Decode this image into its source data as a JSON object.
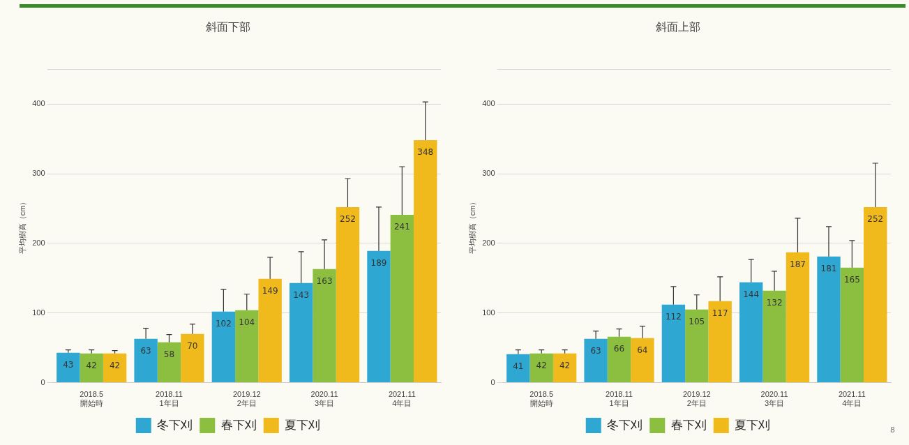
{
  "chart_data": [
    {
      "type": "bar",
      "title": "斜面下部",
      "ylabel": "平均樹高（cm）",
      "categories": [
        "2018.5\n開始時",
        "2018.11\n1年目",
        "2019.12\n2年目",
        "2020.11\n3年目",
        "2021.11\n4年目"
      ],
      "series": [
        {
          "name": "冬下刈",
          "color": "#2ea8d3",
          "values": [
            43,
            63,
            102,
            143,
            189
          ],
          "errors": [
            [
              43,
              47
            ],
            [
              63,
              78
            ],
            [
              102,
              134
            ],
            [
              143,
              188
            ],
            [
              189,
              252
            ]
          ]
        },
        {
          "name": "春下刈",
          "color": "#8cbf3f",
          "values": [
            42,
            58,
            104,
            163,
            241
          ],
          "errors": [
            [
              42,
              47
            ],
            [
              58,
              69
            ],
            [
              104,
              127
            ],
            [
              163,
              205
            ],
            [
              241,
              310
            ]
          ]
        },
        {
          "name": "夏下刈",
          "color": "#f0b91c",
          "values": [
            42,
            70,
            149,
            252,
            348
          ],
          "errors": [
            [
              42,
              46
            ],
            [
              70,
              84
            ],
            [
              149,
              180
            ],
            [
              252,
              293
            ],
            [
              348,
              403
            ]
          ]
        }
      ],
      "ylim": [
        0,
        450
      ],
      "yticks": [
        0,
        100,
        200,
        300,
        400,
        {
          "value": 450,
          "label": null
        }
      ],
      "grid": "y",
      "data_labels": true,
      "legend": "bottom"
    },
    {
      "type": "bar",
      "title": "斜面上部",
      "ylabel": "平均樹高（cm）",
      "categories": [
        "2018.5\n開始時",
        "2018.11\n1年目",
        "2019.12\n2年目",
        "2020.11\n3年目",
        "2021.11\n4年目"
      ],
      "series": [
        {
          "name": "冬下刈",
          "color": "#2ea8d3",
          "values": [
            41,
            63,
            112,
            144,
            181
          ],
          "errors": [
            [
              41,
              47
            ],
            [
              63,
              74
            ],
            [
              112,
              138
            ],
            [
              144,
              177
            ],
            [
              181,
              224
            ]
          ]
        },
        {
          "name": "春下刈",
          "color": "#8cbf3f",
          "values": [
            42,
            66,
            105,
            132,
            165
          ],
          "errors": [
            [
              42,
              47
            ],
            [
              66,
              77
            ],
            [
              105,
              126
            ],
            [
              132,
              160
            ],
            [
              165,
              204
            ]
          ]
        },
        {
          "name": "夏下刈",
          "color": "#f0b91c",
          "values": [
            42,
            64,
            117,
            187,
            252
          ],
          "errors": [
            [
              42,
              47
            ],
            [
              64,
              81
            ],
            [
              117,
              152
            ],
            [
              187,
              236
            ],
            [
              252,
              315
            ]
          ]
        }
      ],
      "ylim": [
        0,
        450
      ],
      "yticks": [
        0,
        100,
        200,
        300,
        400,
        {
          "value": 450,
          "label": null
        }
      ],
      "grid": "y",
      "data_labels": true,
      "legend": "bottom",
      "annotations": [
        "8"
      ]
    }
  ]
}
